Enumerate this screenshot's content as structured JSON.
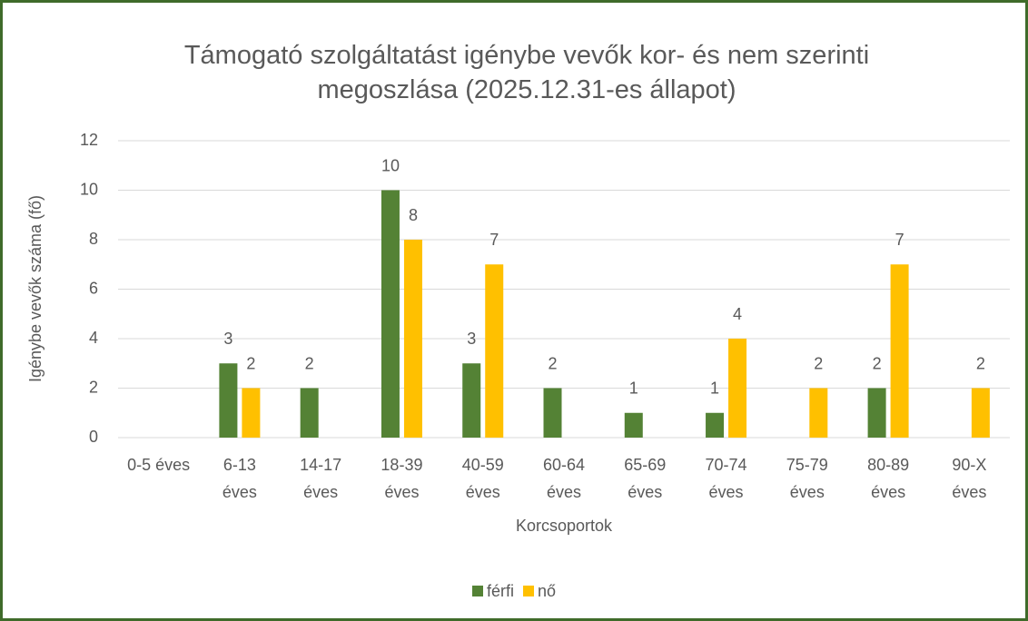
{
  "chart_data": {
    "type": "bar",
    "title": "Támogató szolgáltatást igénybe vevők kor- és nem szerinti\nmegoszlása (2025.12.31-es állapot)",
    "x_label": "Korcsoportok",
    "y_label": "Igénybe vevők száma (fő)",
    "categories": [
      "0-5 éves",
      "6-13\néves",
      "14-17\néves",
      "18-39\néves",
      "40-59\néves",
      "60-64\néves",
      "65-69\néves",
      "70-74\néves",
      "75-79\néves",
      "80-89\néves",
      "90-X\néves"
    ],
    "series": [
      {
        "name": "férfi",
        "color": "#548235",
        "values": [
          null,
          3,
          2,
          10,
          3,
          2,
          1,
          1,
          null,
          2,
          null
        ]
      },
      {
        "name": "nő",
        "color": "#ffc000",
        "values": [
          null,
          2,
          null,
          8,
          7,
          null,
          null,
          4,
          2,
          7,
          2
        ]
      }
    ],
    "ylim": [
      0,
      12
    ],
    "yticks": [
      0,
      2,
      4,
      6,
      8,
      10,
      12
    ],
    "grid": true,
    "legend": "bottom"
  }
}
